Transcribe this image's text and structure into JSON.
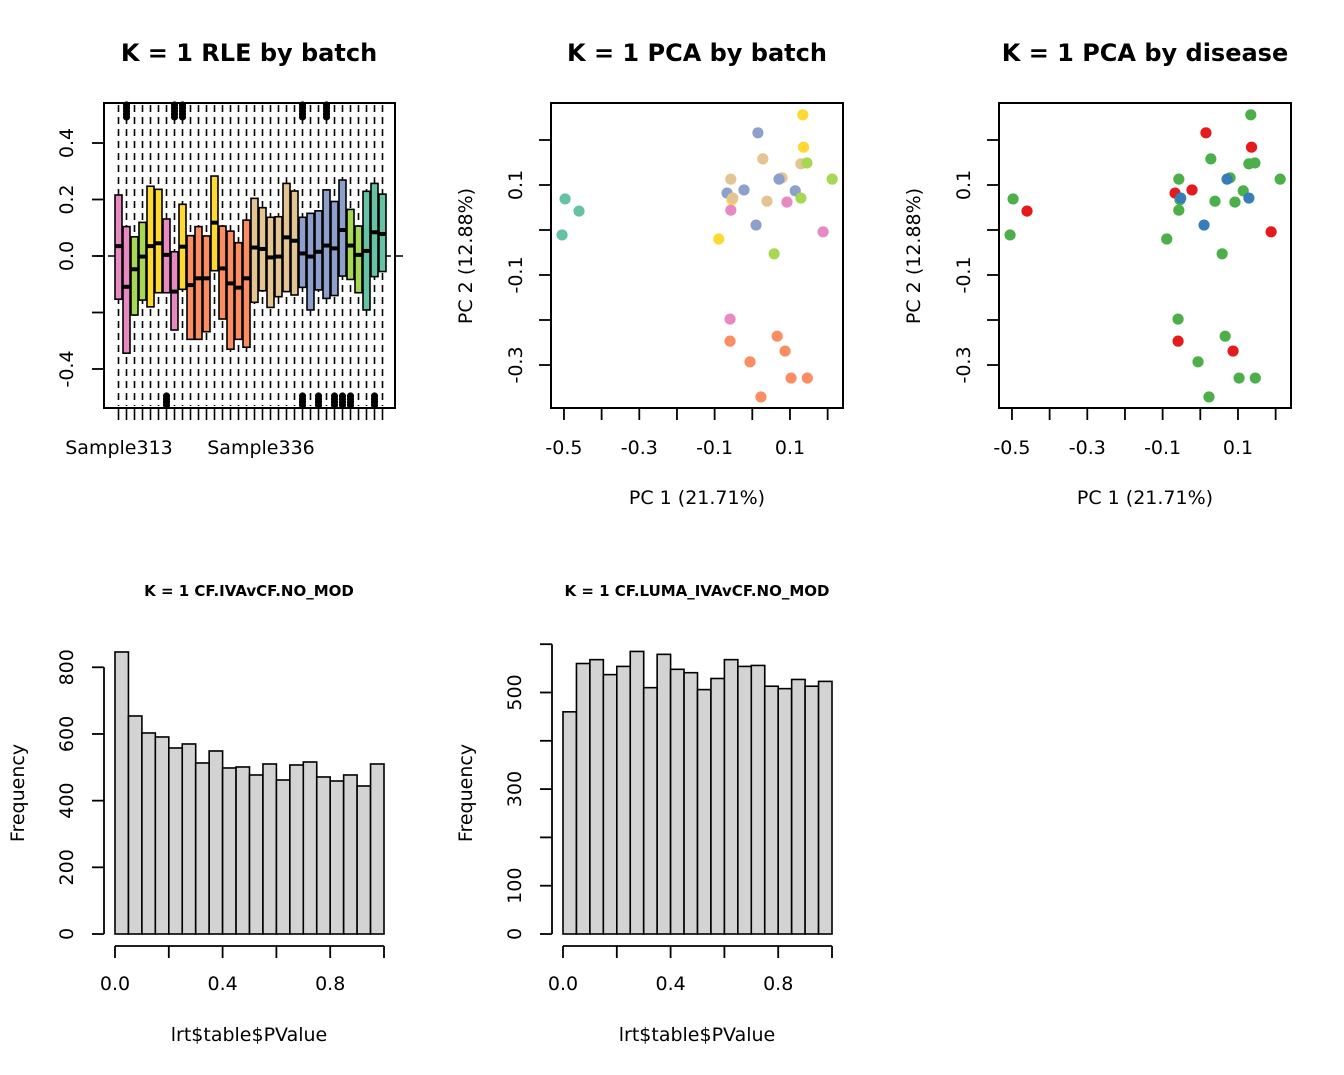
{
  "chart_data": [
    {
      "type": "boxplot",
      "title": "K = 1 RLE by batch",
      "xlabel": "",
      "ylabel": "",
      "ylim": [
        -0.53,
        0.54
      ],
      "yticks": [
        -0.4,
        -0.2,
        0.0,
        0.2,
        0.4
      ],
      "ytick_labels": [
        "-0.4",
        "",
        "0.0",
        "0.2",
        "0.4"
      ],
      "xtick_labels_shown": [
        "Sample313",
        "Sample336"
      ],
      "reference_line": 0,
      "whisker_style": "dashed",
      "batch_colors": {
        "pink": "#e78ac3",
        "green": "#a6d854",
        "yellow": "#ffd92f",
        "orange": "#fc8d62",
        "tan": "#e5c494",
        "blue": "#8da0cb",
        "teal": "#66c2a5"
      },
      "boxes": [
        {
          "batch": "pink",
          "q1": -0.153,
          "median": 0.035,
          "q3": 0.216
        },
        {
          "batch": "pink",
          "q1": -0.344,
          "median": -0.109,
          "q3": 0.104
        },
        {
          "batch": "green",
          "q1": -0.209,
          "median": -0.047,
          "q3": 0.068
        },
        {
          "batch": "green",
          "q1": -0.156,
          "median": -0.002,
          "q3": 0.119
        },
        {
          "batch": "yellow",
          "q1": -0.18,
          "median": 0.035,
          "q3": 0.247
        },
        {
          "batch": "yellow",
          "q1": -0.13,
          "median": 0.045,
          "q3": 0.236
        },
        {
          "batch": "pink",
          "q1": -0.13,
          "median": 0.004,
          "q3": 0.131
        },
        {
          "batch": "pink",
          "q1": -0.262,
          "median": -0.126,
          "q3": 0.015
        },
        {
          "batch": "yellow",
          "q1": -0.118,
          "median": 0.033,
          "q3": 0.183
        },
        {
          "batch": "orange",
          "q1": -0.295,
          "median": -0.103,
          "q3": 0.072
        },
        {
          "batch": "orange",
          "q1": -0.295,
          "median": -0.079,
          "q3": 0.104
        },
        {
          "batch": "orange",
          "q1": -0.268,
          "median": -0.079,
          "q3": 0.071
        },
        {
          "batch": "yellow",
          "q1": -0.052,
          "median": 0.118,
          "q3": 0.283
        },
        {
          "batch": "orange",
          "q1": -0.223,
          "median": -0.044,
          "q3": 0.106
        },
        {
          "batch": "orange",
          "q1": -0.33,
          "median": -0.097,
          "q3": 0.088
        },
        {
          "batch": "orange",
          "q1": -0.295,
          "median": -0.112,
          "q3": 0.047
        },
        {
          "batch": "orange",
          "q1": -0.323,
          "median": -0.079,
          "q3": 0.127
        },
        {
          "batch": "tan",
          "q1": -0.164,
          "median": 0.03,
          "q3": 0.204
        },
        {
          "batch": "tan",
          "q1": -0.123,
          "median": 0.025,
          "q3": 0.171
        },
        {
          "batch": "tan",
          "q1": -0.182,
          "median": -0.005,
          "q3": 0.137
        },
        {
          "batch": "tan",
          "q1": -0.144,
          "median": -0.002,
          "q3": 0.139
        },
        {
          "batch": "tan",
          "q1": -0.126,
          "median": 0.066,
          "q3": 0.257
        },
        {
          "batch": "tan",
          "q1": -0.138,
          "median": 0.054,
          "q3": 0.23
        },
        {
          "batch": "blue",
          "q1": -0.111,
          "median": 0.009,
          "q3": 0.137
        },
        {
          "batch": "blue",
          "q1": -0.191,
          "median": -0.002,
          "q3": 0.151
        },
        {
          "batch": "blue",
          "q1": -0.12,
          "median": 0.015,
          "q3": 0.16
        },
        {
          "batch": "blue",
          "q1": -0.15,
          "median": 0.037,
          "q3": 0.234
        },
        {
          "batch": "blue",
          "q1": -0.14,
          "median": 0.027,
          "q3": 0.193
        },
        {
          "batch": "blue",
          "q1": -0.071,
          "median": 0.092,
          "q3": 0.269
        },
        {
          "batch": "green",
          "q1": -0.083,
          "median": 0.037,
          "q3": 0.165
        },
        {
          "batch": "green",
          "q1": -0.13,
          "median": 0.004,
          "q3": 0.106
        },
        {
          "batch": "teal",
          "q1": -0.191,
          "median": 0.018,
          "q3": 0.229
        },
        {
          "batch": "teal",
          "q1": -0.073,
          "median": 0.084,
          "q3": 0.257
        },
        {
          "batch": "teal",
          "q1": -0.055,
          "median": 0.078,
          "q3": 0.219
        }
      ],
      "outliers_top_box_indices": [
        2,
        8,
        9,
        24,
        27
      ],
      "outliers_bottom_box_indices": [
        7,
        24,
        26,
        28,
        29,
        30,
        33
      ]
    },
    {
      "type": "scatter",
      "title": "K = 1 PCA by batch",
      "xlabel": "PC 1 (21.71%)",
      "ylabel": "PC 2 (12.88%)",
      "xlim": [
        -0.535,
        0.242
      ],
      "ylim": [
        -0.398,
        0.281
      ],
      "xticks": [
        -0.5,
        -0.4,
        -0.3,
        -0.2,
        -0.1,
        0.0,
        0.1,
        0.2
      ],
      "xtick_labels": [
        "-0.5",
        "",
        "-0.3",
        "",
        "-0.1",
        "",
        "0.1",
        ""
      ],
      "yticks": [
        -0.3,
        -0.2,
        -0.1,
        0.0,
        0.1,
        0.2
      ],
      "ytick_labels": [
        "-0.3",
        "",
        "-0.1",
        "",
        "0.1",
        ""
      ],
      "color_by": "batch",
      "colors": {
        "pink": "#e78ac3",
        "green": "#a6d854",
        "yellow": "#ffd92f",
        "orange": "#fc8d62",
        "tan": "#e5c494",
        "blue": "#8da0cb",
        "teal": "#66c2a5"
      },
      "points": [
        {
          "x": -0.497,
          "y": 0.069,
          "group": "teal"
        },
        {
          "x": -0.46,
          "y": 0.042,
          "group": "teal"
        },
        {
          "x": -0.505,
          "y": -0.011,
          "group": "teal"
        },
        {
          "x": 0.134,
          "y": 0.256,
          "group": "yellow"
        },
        {
          "x": 0.015,
          "y": 0.216,
          "group": "blue"
        },
        {
          "x": 0.136,
          "y": 0.184,
          "group": "yellow"
        },
        {
          "x": 0.028,
          "y": 0.158,
          "group": "tan"
        },
        {
          "x": 0.129,
          "y": 0.147,
          "group": "tan"
        },
        {
          "x": 0.145,
          "y": 0.149,
          "group": "green"
        },
        {
          "x": -0.057,
          "y": 0.113,
          "group": "tan"
        },
        {
          "x": 0.079,
          "y": 0.116,
          "group": "tan"
        },
        {
          "x": 0.071,
          "y": 0.113,
          "group": "blue"
        },
        {
          "x": 0.212,
          "y": 0.113,
          "group": "green"
        },
        {
          "x": -0.022,
          "y": 0.089,
          "group": "blue"
        },
        {
          "x": -0.067,
          "y": 0.082,
          "group": "blue"
        },
        {
          "x": 0.114,
          "y": 0.087,
          "group": "blue"
        },
        {
          "x": -0.054,
          "y": 0.067,
          "group": "yellow"
        },
        {
          "x": -0.052,
          "y": 0.071,
          "group": "tan"
        },
        {
          "x": 0.039,
          "y": 0.064,
          "group": "tan"
        },
        {
          "x": 0.092,
          "y": 0.062,
          "group": "pink"
        },
        {
          "x": 0.129,
          "y": 0.071,
          "group": "green"
        },
        {
          "x": -0.057,
          "y": 0.044,
          "group": "pink"
        },
        {
          "x": 0.01,
          "y": 0.011,
          "group": "blue"
        },
        {
          "x": 0.188,
          "y": -0.004,
          "group": "pink"
        },
        {
          "x": -0.089,
          "y": -0.02,
          "group": "yellow"
        },
        {
          "x": 0.058,
          "y": -0.053,
          "group": "green"
        },
        {
          "x": -0.059,
          "y": -0.198,
          "group": "pink"
        },
        {
          "x": 0.066,
          "y": -0.236,
          "group": "orange"
        },
        {
          "x": -0.059,
          "y": -0.247,
          "group": "orange"
        },
        {
          "x": 0.087,
          "y": -0.269,
          "group": "orange"
        },
        {
          "x": -0.006,
          "y": -0.293,
          "group": "orange"
        },
        {
          "x": 0.103,
          "y": -0.329,
          "group": "orange"
        },
        {
          "x": 0.146,
          "y": -0.329,
          "group": "orange"
        },
        {
          "x": 0.023,
          "y": -0.371,
          "group": "orange"
        }
      ]
    },
    {
      "type": "scatter",
      "title": "K = 1 PCA by disease",
      "xlabel": "PC 1 (21.71%)",
      "ylabel": "PC 2 (12.88%)",
      "xlim": [
        -0.535,
        0.242
      ],
      "ylim": [
        -0.398,
        0.281
      ],
      "xticks": [
        -0.5,
        -0.4,
        -0.3,
        -0.2,
        -0.1,
        0.0,
        0.1,
        0.2
      ],
      "xtick_labels": [
        "-0.5",
        "",
        "-0.3",
        "",
        "-0.1",
        "",
        "0.1",
        ""
      ],
      "yticks": [
        -0.3,
        -0.2,
        -0.1,
        0.0,
        0.1,
        0.2
      ],
      "ytick_labels": [
        "-0.3",
        "",
        "-0.1",
        "",
        "0.1",
        ""
      ],
      "color_by": "disease",
      "colors": {
        "red": "#e41a1c",
        "blue": "#377eb8",
        "green": "#4daf4a"
      },
      "points": [
        {
          "x": -0.497,
          "y": 0.069,
          "group": "green"
        },
        {
          "x": -0.46,
          "y": 0.042,
          "group": "red"
        },
        {
          "x": -0.505,
          "y": -0.011,
          "group": "green"
        },
        {
          "x": 0.134,
          "y": 0.256,
          "group": "green"
        },
        {
          "x": 0.015,
          "y": 0.216,
          "group": "red"
        },
        {
          "x": 0.136,
          "y": 0.184,
          "group": "red"
        },
        {
          "x": 0.028,
          "y": 0.158,
          "group": "green"
        },
        {
          "x": 0.129,
          "y": 0.147,
          "group": "green"
        },
        {
          "x": 0.145,
          "y": 0.149,
          "group": "green"
        },
        {
          "x": -0.057,
          "y": 0.113,
          "group": "green"
        },
        {
          "x": 0.079,
          "y": 0.116,
          "group": "green"
        },
        {
          "x": 0.071,
          "y": 0.113,
          "group": "blue"
        },
        {
          "x": 0.212,
          "y": 0.113,
          "group": "green"
        },
        {
          "x": -0.022,
          "y": 0.089,
          "group": "red"
        },
        {
          "x": -0.067,
          "y": 0.082,
          "group": "red"
        },
        {
          "x": 0.114,
          "y": 0.087,
          "group": "green"
        },
        {
          "x": -0.054,
          "y": 0.067,
          "group": "green"
        },
        {
          "x": -0.052,
          "y": 0.071,
          "group": "blue"
        },
        {
          "x": 0.039,
          "y": 0.064,
          "group": "green"
        },
        {
          "x": 0.092,
          "y": 0.062,
          "group": "green"
        },
        {
          "x": 0.129,
          "y": 0.071,
          "group": "blue"
        },
        {
          "x": -0.057,
          "y": 0.044,
          "group": "green"
        },
        {
          "x": 0.01,
          "y": 0.011,
          "group": "blue"
        },
        {
          "x": 0.188,
          "y": -0.004,
          "group": "red"
        },
        {
          "x": -0.089,
          "y": -0.02,
          "group": "green"
        },
        {
          "x": 0.058,
          "y": -0.053,
          "group": "green"
        },
        {
          "x": -0.059,
          "y": -0.198,
          "group": "green"
        },
        {
          "x": 0.066,
          "y": -0.236,
          "group": "green"
        },
        {
          "x": -0.059,
          "y": -0.247,
          "group": "red"
        },
        {
          "x": 0.087,
          "y": -0.269,
          "group": "red"
        },
        {
          "x": -0.006,
          "y": -0.293,
          "group": "green"
        },
        {
          "x": 0.103,
          "y": -0.329,
          "group": "green"
        },
        {
          "x": 0.146,
          "y": -0.329,
          "group": "green"
        },
        {
          "x": 0.023,
          "y": -0.371,
          "group": "green"
        }
      ]
    },
    {
      "type": "bar",
      "subtype": "histogram",
      "title": "K = 1 CF.IVAvCF.NO_MOD",
      "xlabel": "lrt$table$PValue",
      "ylabel": "Frequency",
      "bin_width": 0.05,
      "xlim": [
        0,
        1
      ],
      "ylim": [
        0,
        846
      ],
      "xticks": [
        0.0,
        0.2,
        0.4,
        0.6,
        0.8,
        1.0
      ],
      "xtick_labels": [
        "0.0",
        "",
        "0.4",
        "",
        "0.8",
        ""
      ],
      "yticks": [
        0,
        200,
        400,
        600,
        800
      ],
      "ytick_labels": [
        "0",
        "200",
        "400",
        "600",
        "800"
      ],
      "bar_fill": "#d3d3d3",
      "values": [
        846,
        654,
        603,
        591,
        558,
        570,
        513,
        549,
        498,
        501,
        477,
        510,
        462,
        507,
        516,
        471,
        459,
        477,
        444,
        510
      ]
    },
    {
      "type": "bar",
      "subtype": "histogram",
      "title": "K = 1 CF.LUMA_IVAvCF.NO_MOD",
      "xlabel": "lrt$table$PValue",
      "ylabel": "Frequency",
      "bin_width": 0.05,
      "xlim": [
        0,
        1
      ],
      "ylim": [
        0,
        600
      ],
      "xticks": [
        0.0,
        0.2,
        0.4,
        0.6,
        0.8,
        1.0
      ],
      "xtick_labels": [
        "0.0",
        "",
        "0.4",
        "",
        "0.8",
        ""
      ],
      "yticks": [
        0,
        100,
        200,
        300,
        400,
        500,
        600
      ],
      "ytick_labels": [
        "0",
        "100",
        "",
        "300",
        "",
        "500",
        ""
      ],
      "bar_fill": "#d3d3d3",
      "values": [
        460,
        560,
        568,
        537,
        554,
        585,
        510,
        579,
        548,
        541,
        506,
        529,
        568,
        554,
        556,
        513,
        508,
        527,
        513,
        523
      ]
    }
  ]
}
